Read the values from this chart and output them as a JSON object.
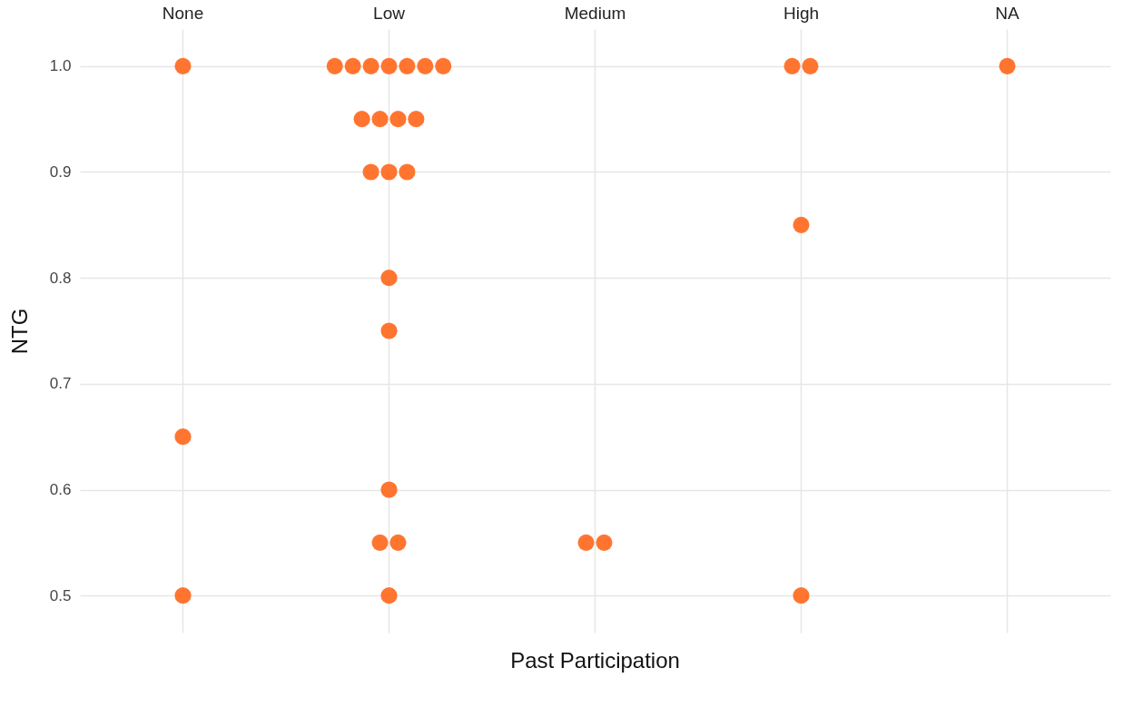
{
  "chart_data": {
    "type": "scatter",
    "xlabel": "Past Participation",
    "ylabel": "NTG",
    "categories": [
      "None",
      "Low",
      "Medium",
      "High",
      "NA"
    ],
    "series": [
      {
        "color": "#ff7530",
        "x": [
          "None",
          "None",
          "None",
          "Low",
          "Low",
          "Low",
          "Low",
          "Low",
          "Low",
          "Low",
          "Low",
          "Low",
          "Low",
          "Low",
          "Low",
          "Low",
          "Low",
          "Low",
          "Low",
          "Low",
          "Low",
          "Low",
          "Low",
          "Medium",
          "Medium",
          "High",
          "High",
          "High",
          "High",
          "NA"
        ],
        "values": [
          1.0,
          0.65,
          0.5,
          1.0,
          1.0,
          1.0,
          1.0,
          1.0,
          1.0,
          1.0,
          0.95,
          0.95,
          0.95,
          0.95,
          0.9,
          0.9,
          0.9,
          0.8,
          0.75,
          0.6,
          0.55,
          0.55,
          0.5,
          0.55,
          0.55,
          1.0,
          1.0,
          0.85,
          0.5,
          1.0
        ]
      }
    ],
    "ylim": [
      0.465,
      1.035
    ],
    "yticks": [
      {
        "value": 0.5,
        "label": "0.5"
      },
      {
        "value": 0.6,
        "label": "0.6"
      },
      {
        "value": 0.7,
        "label": "0.7"
      },
      {
        "value": 0.8,
        "label": "0.8"
      },
      {
        "value": 0.9,
        "label": "0.9"
      },
      {
        "value": 1,
        "label": "1.0"
      }
    ],
    "grid": true,
    "marker": "circle"
  }
}
